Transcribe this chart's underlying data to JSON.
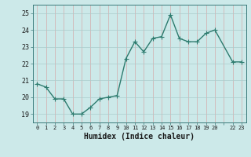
{
  "x": [
    0,
    1,
    2,
    3,
    4,
    5,
    6,
    7,
    8,
    9,
    10,
    11,
    12,
    13,
    14,
    15,
    16,
    17,
    18,
    19,
    20,
    22,
    23
  ],
  "y": [
    20.8,
    20.6,
    19.9,
    19.9,
    19.0,
    19.0,
    19.4,
    19.9,
    20.0,
    20.1,
    22.3,
    23.3,
    22.7,
    23.5,
    23.6,
    24.9,
    23.5,
    23.3,
    23.3,
    23.8,
    24.0,
    22.1,
    22.1
  ],
  "line_color": "#2d7b6e",
  "marker": "+",
  "marker_size": 4,
  "bg_color": "#cce9e9",
  "grid_major_color": "#aacccc",
  "grid_minor_color": "#d4aaaa",
  "xlabel": "Humidex (Indice chaleur)",
  "xlabel_fontsize": 7,
  "ylabel_ticks": [
    19,
    20,
    21,
    22,
    23,
    24,
    25
  ],
  "xtick_labels": [
    "0",
    "1",
    "2",
    "3",
    "4",
    "5",
    "6",
    "7",
    "8",
    "9",
    "10",
    "11",
    "12",
    "13",
    "14",
    "15",
    "16",
    "17",
    "18",
    "19",
    "20",
    "",
    "22",
    "23"
  ],
  "xtick_positions": [
    0,
    1,
    2,
    3,
    4,
    5,
    6,
    7,
    8,
    9,
    10,
    11,
    12,
    13,
    14,
    15,
    16,
    17,
    18,
    19,
    20,
    21,
    22,
    23
  ],
  "ylim": [
    18.5,
    25.5
  ],
  "xlim": [
    -0.5,
    23.5
  ],
  "linewidth": 1.0
}
